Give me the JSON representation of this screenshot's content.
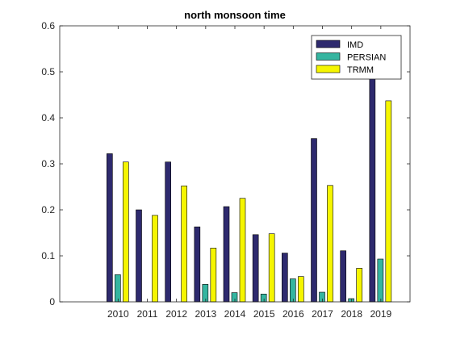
{
  "chart_data": {
    "type": "bar",
    "title": "north monsoon time",
    "xlabel": "",
    "ylabel": "",
    "categories": [
      "2010",
      "2011",
      "2012",
      "2013",
      "2014",
      "2015",
      "2016",
      "2017",
      "2018",
      "2019"
    ],
    "xlim": [
      "",
      "2019"
    ],
    "ylim": [
      0,
      0.6
    ],
    "yticks": [
      "0",
      "0.1",
      "0.2",
      "0.3",
      "0.4",
      "0.5",
      "0.6"
    ],
    "grid": false,
    "legend_position": "top-right",
    "series": [
      {
        "name": "IMD",
        "color": "#2e2a6e",
        "values": [
          0.322,
          0.2,
          0.304,
          0.163,
          0.207,
          0.146,
          0.106,
          0.355,
          0.111,
          0.501
        ]
      },
      {
        "name": "PERSIAN",
        "color": "#35b5a0",
        "values": [
          0.059,
          0.0,
          0.0,
          0.038,
          0.02,
          0.017,
          0.05,
          0.021,
          0.007,
          0.093
        ]
      },
      {
        "name": "TRMM",
        "color": "#f5f500",
        "values": [
          0.304,
          0.188,
          0.252,
          0.117,
          0.225,
          0.148,
          0.055,
          0.253,
          0.073,
          0.437
        ]
      }
    ]
  }
}
